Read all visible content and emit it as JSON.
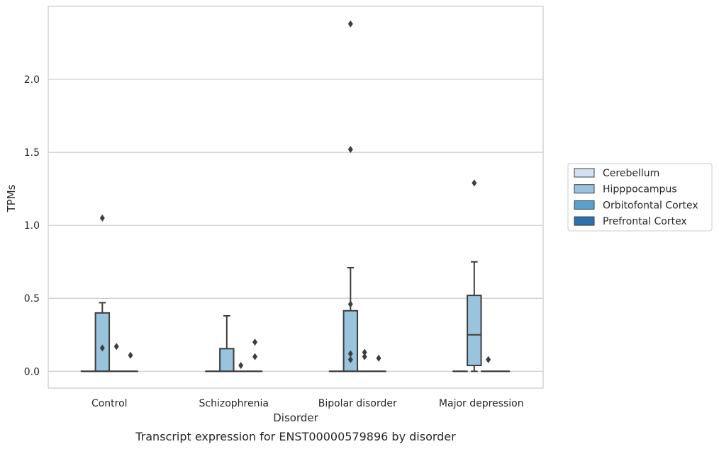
{
  "chart_data": {
    "type": "box",
    "title": "",
    "caption": "Transcript expression for ENST00000579896 by disorder",
    "xlabel": "Disorder",
    "ylabel": "TPMs",
    "ylim": [
      -0.115,
      2.5
    ],
    "yticks": [
      0.0,
      0.5,
      1.0,
      1.5,
      2.0
    ],
    "ytick_labels": [
      "0.0",
      "0.5",
      "1.0",
      "1.5",
      "2.0"
    ],
    "grid": "horizontal",
    "legend_position": "right",
    "categories": [
      "Control",
      "Schizophrenia",
      "Bipolar disorder",
      "Major depression"
    ],
    "series": [
      {
        "name": "Cerebellum",
        "color": "#d0e1f2",
        "boxes": [
          {
            "q1": 0,
            "median": 0,
            "q3": 0,
            "whisker_low": 0,
            "whisker_high": 0,
            "outliers": []
          },
          {
            "q1": 0,
            "median": 0,
            "q3": 0,
            "whisker_low": 0,
            "whisker_high": 0,
            "outliers": []
          },
          {
            "q1": 0,
            "median": 0,
            "q3": 0,
            "whisker_low": 0,
            "whisker_high": 0,
            "outliers": []
          },
          {
            "q1": 0,
            "median": 0,
            "q3": 0,
            "whisker_low": 0,
            "whisker_high": 0,
            "outliers": []
          }
        ]
      },
      {
        "name": "Hipppocampus",
        "color": "#9ac3dd",
        "boxes": [
          {
            "q1": 0,
            "median": 0,
            "q3": 0.4,
            "whisker_low": 0,
            "whisker_high": 0.47,
            "outliers": [
              0.16,
              1.05
            ]
          },
          {
            "q1": 0,
            "median": 0,
            "q3": 0.155,
            "whisker_low": 0,
            "whisker_high": 0.38,
            "outliers": []
          },
          {
            "q1": 0,
            "median": 0,
            "q3": 0.415,
            "whisker_low": 0,
            "whisker_high": 0.71,
            "outliers": [
              0.46,
              0.12,
              0.08,
              1.52,
              2.38
            ]
          },
          {
            "q1": 0.04,
            "median": 0.25,
            "q3": 0.52,
            "whisker_low": 0,
            "whisker_high": 0.75,
            "outliers": [
              1.29
            ]
          }
        ]
      },
      {
        "name": "Orbitofontal Cortex",
        "color": "#5aa0cd",
        "boxes": [
          {
            "q1": 0,
            "median": 0,
            "q3": 0,
            "whisker_low": 0,
            "whisker_high": 0,
            "outliers": [
              0.17
            ]
          },
          {
            "q1": 0,
            "median": 0,
            "q3": 0,
            "whisker_low": 0,
            "whisker_high": 0,
            "outliers": [
              0.04
            ]
          },
          {
            "q1": 0,
            "median": 0,
            "q3": 0,
            "whisker_low": 0,
            "whisker_high": 0,
            "outliers": [
              0.13,
              0.1
            ]
          },
          {
            "q1": 0,
            "median": 0,
            "q3": 0,
            "whisker_low": 0,
            "whisker_high": 0,
            "outliers": [
              0.08
            ]
          }
        ]
      },
      {
        "name": "Prefrontal Cortex",
        "color": "#2c70b0",
        "boxes": [
          {
            "q1": 0,
            "median": 0,
            "q3": 0,
            "whisker_low": 0,
            "whisker_high": 0,
            "outliers": [
              0.11
            ]
          },
          {
            "q1": 0,
            "median": 0,
            "q3": 0,
            "whisker_low": 0,
            "whisker_high": 0,
            "outliers": [
              0.2,
              0.1
            ]
          },
          {
            "q1": 0,
            "median": 0,
            "q3": 0,
            "whisker_low": 0,
            "whisker_high": 0,
            "outliers": [
              0.09
            ]
          },
          {
            "q1": 0,
            "median": 0,
            "q3": 0,
            "whisker_low": 0,
            "whisker_high": 0,
            "outliers": []
          }
        ]
      }
    ]
  }
}
